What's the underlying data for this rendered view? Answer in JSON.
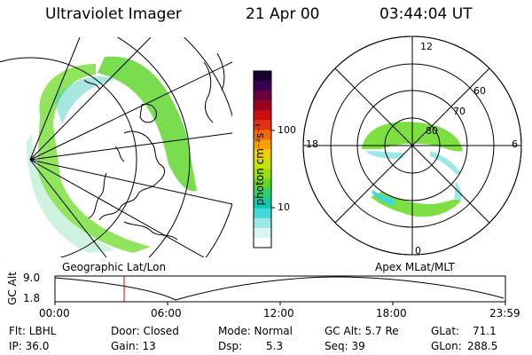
{
  "header": {
    "instrument": "Ultraviolet Imager",
    "date": "21 Apr 00",
    "time": "03:44:04 UT"
  },
  "colorbar": {
    "unit_label": "photon cm⁻²s⁻¹",
    "ticks": [
      {
        "label": "100",
        "value": 100
      },
      {
        "label": "10",
        "value": 10
      }
    ],
    "colors": [
      "#1a0030",
      "#3a0050",
      "#6a0040",
      "#9a0020",
      "#c81010",
      "#e23010",
      "#f06a00",
      "#f7a000",
      "#f0d000",
      "#c8e000",
      "#98e000",
      "#60d820",
      "#30d070",
      "#10c8b0",
      "#40d8d8",
      "#9ae8e8",
      "#d8f4f4",
      "#ffffff"
    ]
  },
  "maps": {
    "left_label": "Geographic Lat/Lon",
    "right_label": "Apex MLat/MLT"
  },
  "polar": {
    "mlt_labels": {
      "top": "12",
      "left": "18",
      "right": "6",
      "bottom": "0"
    },
    "lat_labels": [
      "60",
      "70",
      "80"
    ]
  },
  "altitude_plot": {
    "axis_label": "GC Alt",
    "y_max_label": "9.0",
    "y_min_label": "1.8",
    "x_labels": [
      "00:00",
      "06:00",
      "12:00",
      "18:00",
      "23:59"
    ]
  },
  "status": {
    "filter": "Flt: LBHL",
    "door": "Door: Closed",
    "mode": "Mode: Normal",
    "gc_alt": "GC Alt: 5.7 Re",
    "glat_label": "GLat:",
    "glat_value": "71.1",
    "ip": "IP: 36.0",
    "gain": "Gain: 13",
    "dsp_label": "Dsp:",
    "dsp_value": "5.3",
    "seq": "Seq: 39",
    "glon_label": "GLon:",
    "glon_value": "288.5"
  }
}
